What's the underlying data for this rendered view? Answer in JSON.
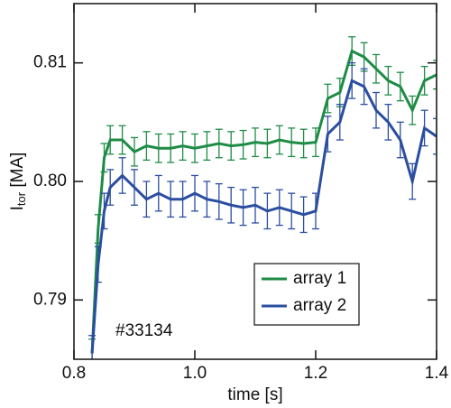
{
  "chart_data": {
    "type": "line",
    "xlabel": "time [s]",
    "ylabel": [
      "I",
      "tor",
      " [MA]"
    ],
    "annotation": "#33134",
    "x": [
      0.83,
      0.84,
      0.85,
      0.86,
      0.88,
      0.9,
      0.92,
      0.94,
      0.96,
      0.98,
      1.0,
      1.02,
      1.04,
      1.06,
      1.08,
      1.1,
      1.12,
      1.14,
      1.16,
      1.18,
      1.2,
      1.22,
      1.24,
      1.26,
      1.28,
      1.3,
      1.32,
      1.34,
      1.36,
      1.38,
      1.4
    ],
    "series": [
      {
        "name": "array 1",
        "color": "#1e8c46",
        "values": [
          0.7855,
          0.796,
          0.802,
          0.8035,
          0.8035,
          0.8025,
          0.803,
          0.8028,
          0.8028,
          0.803,
          0.8028,
          0.803,
          0.8032,
          0.803,
          0.8031,
          0.8033,
          0.8032,
          0.8035,
          0.8033,
          0.8032,
          0.8033,
          0.807,
          0.8075,
          0.811,
          0.8105,
          0.8095,
          0.8085,
          0.808,
          0.806,
          0.8085,
          0.809
        ],
        "errors": [
          0.0012,
          0.0012,
          0.0012,
          0.0012,
          0.0012,
          0.0012,
          0.0012,
          0.0012,
          0.0012,
          0.0012,
          0.0012,
          0.0012,
          0.0012,
          0.0012,
          0.0012,
          0.0012,
          0.0012,
          0.0012,
          0.0012,
          0.0012,
          0.0012,
          0.0012,
          0.0012,
          0.0012,
          0.0012,
          0.0012,
          0.0012,
          0.0012,
          0.0012,
          0.0012,
          0.0012
        ]
      },
      {
        "name": "array 2",
        "color": "#2b4ea0",
        "values": [
          0.7855,
          0.793,
          0.7975,
          0.7995,
          0.8005,
          0.7995,
          0.7985,
          0.799,
          0.7985,
          0.7985,
          0.799,
          0.7985,
          0.7983,
          0.798,
          0.7978,
          0.798,
          0.7975,
          0.7978,
          0.7975,
          0.7972,
          0.7975,
          0.804,
          0.805,
          0.8085,
          0.808,
          0.806,
          0.805,
          0.8035,
          0.8,
          0.8045,
          0.8038
        ],
        "errors": [
          0.0015,
          0.0015,
          0.0015,
          0.0015,
          0.0015,
          0.0015,
          0.0015,
          0.0015,
          0.0015,
          0.0015,
          0.0015,
          0.0015,
          0.0015,
          0.0015,
          0.0015,
          0.0015,
          0.0015,
          0.0015,
          0.0015,
          0.0015,
          0.0015,
          0.0015,
          0.0015,
          0.0015,
          0.0015,
          0.0015,
          0.0015,
          0.0015,
          0.0015,
          0.0015,
          0.0015
        ]
      }
    ],
    "xlim": [
      0.8,
      1.4
    ],
    "ylim": [
      0.785,
      0.815
    ],
    "xticks": [
      0.8,
      {
        "value": 1,
        "label": "1.0"
      },
      1.2,
      1.4
    ],
    "yticks": [
      0.79,
      {
        "value": 0.8,
        "label": "0.80"
      },
      0.81
    ],
    "legend": "lower right"
  }
}
